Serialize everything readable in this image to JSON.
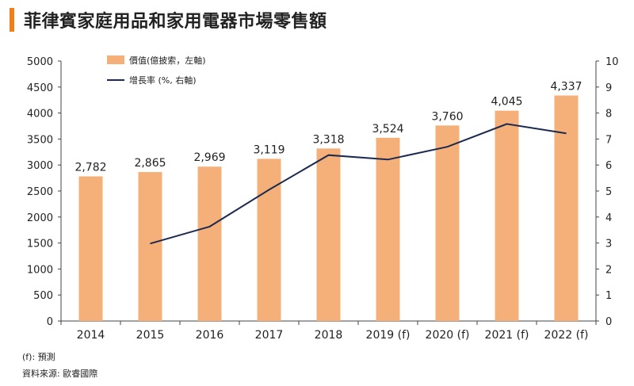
{
  "title": "菲律賓家庭用品和家用電器市場零售額",
  "footnotes": {
    "forecast": "(f): 預測",
    "source": "資料來源: 歐睿國際"
  },
  "colors": {
    "accent": "#f07f1a",
    "bar": "#f5b07a",
    "line": "#1c2a4f",
    "axis": "#444444"
  },
  "chart_data": {
    "type": "bar",
    "categories": [
      "2014",
      "2015",
      "2016",
      "2017",
      "2018",
      "2019 (f)",
      "2020 (f)",
      "2021 (f)",
      "2022 (f)"
    ],
    "series": [
      {
        "name": "價值(億披索，左軸)",
        "type": "bar",
        "axis": "left",
        "values": [
          2782,
          2865,
          2969,
          3119,
          3318,
          3524,
          3760,
          4045,
          4337
        ],
        "data_labels": [
          "2,782",
          "2,865",
          "2,969",
          "3,119",
          "3,318",
          "3,524",
          "3,760",
          "4,045",
          "4,337"
        ]
      },
      {
        "name": "增長率 (%, 右軸)",
        "type": "line",
        "axis": "right",
        "values": [
          null,
          2.98,
          3.63,
          5.05,
          6.38,
          6.21,
          6.7,
          7.58,
          7.22
        ]
      }
    ],
    "left_axis": {
      "min": 0,
      "max": 5000,
      "step": 500,
      "ticks": [
        "0",
        "500",
        "1000",
        "1500",
        "2000",
        "2500",
        "3000",
        "3500",
        "4000",
        "4500",
        "5000"
      ]
    },
    "right_axis": {
      "min": 0,
      "max": 10,
      "step": 1,
      "ticks": [
        "0",
        "1",
        "2",
        "3",
        "4",
        "5",
        "6",
        "7",
        "8",
        "9",
        "10"
      ]
    },
    "legend_position": "top-left",
    "grid": false
  }
}
